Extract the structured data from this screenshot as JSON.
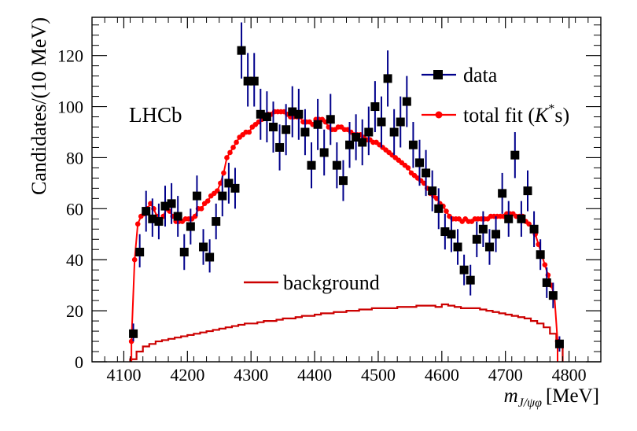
{
  "chart_data": {
    "type": "line",
    "experiment_label": "LHCb",
    "xlabel_main": "m",
    "xlabel_subscript": "J/ψφ",
    "xlabel_unit": "[MeV]",
    "ylabel": "Candidates/(10 MeV)",
    "xlim": [
      4050,
      4850
    ],
    "ylim": [
      0,
      135
    ],
    "x_ticks": [
      4100,
      4200,
      4300,
      4400,
      4500,
      4600,
      4700,
      4800
    ],
    "y_ticks": [
      0,
      20,
      40,
      60,
      80,
      100,
      120
    ],
    "legend": {
      "position": "top-right",
      "data_label": "data",
      "fit_label_prefix": "total fit (",
      "fit_label_symbol": "K",
      "fit_label_superscript": "*",
      "fit_label_suffix": "s)",
      "background_label": "background"
    },
    "colors": {
      "data": "#000000",
      "error_bar": "#00008b",
      "fit": "#ff0000",
      "background": "#cc0000"
    },
    "series": [
      {
        "name": "data",
        "x": [
          4115,
          4125,
          4135,
          4145,
          4155,
          4165,
          4175,
          4185,
          4195,
          4205,
          4215,
          4225,
          4235,
          4245,
          4255,
          4265,
          4275,
          4285,
          4295,
          4305,
          4315,
          4325,
          4335,
          4345,
          4355,
          4365,
          4375,
          4385,
          4395,
          4405,
          4415,
          4425,
          4435,
          4445,
          4455,
          4465,
          4475,
          4485,
          4495,
          4505,
          4515,
          4525,
          4535,
          4545,
          4555,
          4565,
          4575,
          4585,
          4595,
          4605,
          4615,
          4625,
          4635,
          4645,
          4655,
          4665,
          4675,
          4685,
          4695,
          4705,
          4715,
          4725,
          4735,
          4745,
          4755,
          4765,
          4775,
          4785
        ],
        "y": [
          11,
          43,
          59,
          56,
          55,
          61,
          62,
          57,
          43,
          53,
          65,
          45,
          41,
          55,
          65,
          70,
          68,
          122,
          110,
          110,
          97,
          96,
          92,
          84,
          91,
          98,
          97,
          90,
          77,
          93,
          82,
          95,
          77,
          71,
          85,
          88,
          86,
          90,
          100,
          94,
          111,
          90,
          94,
          102,
          85,
          78,
          74,
          67,
          60,
          51,
          50,
          45,
          36,
          32,
          48,
          52,
          45,
          50,
          66,
          56,
          81,
          56,
          67,
          52,
          42,
          31,
          26,
          7
        ],
        "err_up": [
          4,
          7,
          8,
          8,
          7,
          8,
          8,
          8,
          7,
          7,
          8,
          7,
          7,
          7,
          8,
          8,
          8,
          11,
          11,
          11,
          10,
          10,
          10,
          9,
          10,
          10,
          10,
          9,
          9,
          10,
          9,
          10,
          9,
          8,
          9,
          9,
          9,
          10,
          10,
          10,
          11,
          9,
          10,
          10,
          9,
          9,
          9,
          8,
          8,
          7,
          7,
          7,
          6,
          6,
          7,
          7,
          7,
          7,
          8,
          7,
          9,
          7,
          8,
          7,
          6,
          6,
          5,
          3
        ],
        "err_down": [
          3,
          6,
          8,
          7,
          7,
          8,
          8,
          8,
          7,
          7,
          8,
          7,
          6,
          7,
          8,
          8,
          8,
          11,
          10,
          10,
          10,
          10,
          10,
          9,
          10,
          10,
          10,
          9,
          9,
          10,
          9,
          10,
          9,
          8,
          9,
          9,
          9,
          9,
          10,
          10,
          11,
          9,
          10,
          10,
          9,
          9,
          9,
          8,
          8,
          7,
          7,
          7,
          6,
          6,
          7,
          7,
          7,
          7,
          8,
          7,
          9,
          7,
          8,
          7,
          6,
          6,
          5,
          3
        ]
      },
      {
        "name": "total fit",
        "x": [
          4112,
          4117,
          4122,
          4127,
          4132,
          4137,
          4142,
          4147,
          4152,
          4157,
          4162,
          4167,
          4172,
          4177,
          4182,
          4187,
          4192,
          4197,
          4202,
          4207,
          4212,
          4217,
          4222,
          4227,
          4232,
          4237,
          4242,
          4247,
          4252,
          4257,
          4262,
          4267,
          4272,
          4277,
          4282,
          4287,
          4292,
          4297,
          4302,
          4307,
          4312,
          4317,
          4322,
          4327,
          4332,
          4337,
          4342,
          4347,
          4352,
          4357,
          4362,
          4367,
          4372,
          4377,
          4382,
          4387,
          4392,
          4397,
          4402,
          4407,
          4412,
          4417,
          4422,
          4427,
          4432,
          4437,
          4442,
          4447,
          4452,
          4457,
          4462,
          4467,
          4472,
          4477,
          4482,
          4487,
          4492,
          4497,
          4502,
          4507,
          4512,
          4517,
          4522,
          4527,
          4532,
          4537,
          4542,
          4547,
          4552,
          4557,
          4562,
          4567,
          4572,
          4577,
          4582,
          4587,
          4592,
          4597,
          4602,
          4607,
          4612,
          4617,
          4622,
          4627,
          4632,
          4637,
          4642,
          4647,
          4652,
          4657,
          4662,
          4667,
          4672,
          4677,
          4682,
          4687,
          4692,
          4697,
          4702,
          4707,
          4712,
          4717,
          4722,
          4727,
          4732,
          4737,
          4742,
          4747,
          4752,
          4757,
          4762,
          4767,
          4772,
          4777,
          4782
        ],
        "y": [
          8,
          40,
          54,
          57,
          58,
          60,
          62,
          60,
          57,
          55,
          57,
          60,
          59,
          57,
          55,
          55,
          55,
          56,
          56,
          56,
          57,
          60,
          60,
          62,
          63,
          65,
          66,
          67,
          70,
          74,
          80,
          82,
          84,
          86,
          88,
          89,
          90,
          90,
          92,
          93,
          94,
          95,
          96,
          97,
          97,
          98,
          98,
          98,
          98,
          97,
          96,
          96,
          96,
          96,
          94,
          94,
          94,
          93,
          95,
          95,
          95,
          94,
          92,
          91,
          91,
          92,
          92,
          91,
          91,
          90,
          89,
          89,
          89,
          88,
          87,
          87,
          86,
          86,
          85,
          84,
          83,
          82,
          81,
          80,
          79,
          78,
          77,
          76,
          74,
          73,
          72,
          71,
          70,
          68,
          66,
          65,
          64,
          62,
          61,
          59,
          57,
          56,
          56,
          56,
          55,
          56,
          55,
          55,
          56,
          56,
          56,
          56,
          56,
          57,
          57,
          57,
          57,
          57,
          58,
          58,
          58,
          57,
          57,
          57,
          55,
          54,
          52,
          50,
          46,
          42,
          38,
          34,
          30,
          26,
          8
        ]
      },
      {
        "name": "background",
        "type": "step",
        "edges": [
          4110,
          4120,
          4130,
          4140,
          4150,
          4160,
          4170,
          4180,
          4190,
          4200,
          4210,
          4220,
          4230,
          4240,
          4250,
          4260,
          4270,
          4280,
          4290,
          4300,
          4310,
          4320,
          4330,
          4340,
          4350,
          4360,
          4370,
          4380,
          4390,
          4400,
          4410,
          4420,
          4430,
          4440,
          4450,
          4460,
          4470,
          4480,
          4490,
          4500,
          4510,
          4520,
          4530,
          4540,
          4550,
          4560,
          4570,
          4580,
          4590,
          4600,
          4610,
          4620,
          4630,
          4640,
          4650,
          4660,
          4670,
          4680,
          4690,
          4700,
          4710,
          4720,
          4730,
          4740,
          4750,
          4760,
          4770,
          4780,
          4790
        ],
        "y": [
          1,
          4,
          6,
          7,
          8,
          8.5,
          9,
          9.5,
          10,
          10.5,
          11,
          11.5,
          12,
          12.5,
          13,
          13.5,
          14,
          14.5,
          15,
          15,
          15.5,
          16,
          16,
          16.5,
          17,
          17,
          17.5,
          18,
          18,
          18.5,
          19,
          19,
          19.5,
          19.5,
          20,
          20,
          20.5,
          20.5,
          21,
          21,
          21,
          21,
          21.5,
          21.5,
          21.5,
          22,
          22,
          22,
          21.5,
          22.5,
          22,
          21.5,
          21,
          21,
          21,
          20.5,
          20,
          19.5,
          19,
          18.5,
          18,
          17.5,
          17,
          16,
          15,
          13.5,
          11,
          6
        ]
      }
    ]
  }
}
